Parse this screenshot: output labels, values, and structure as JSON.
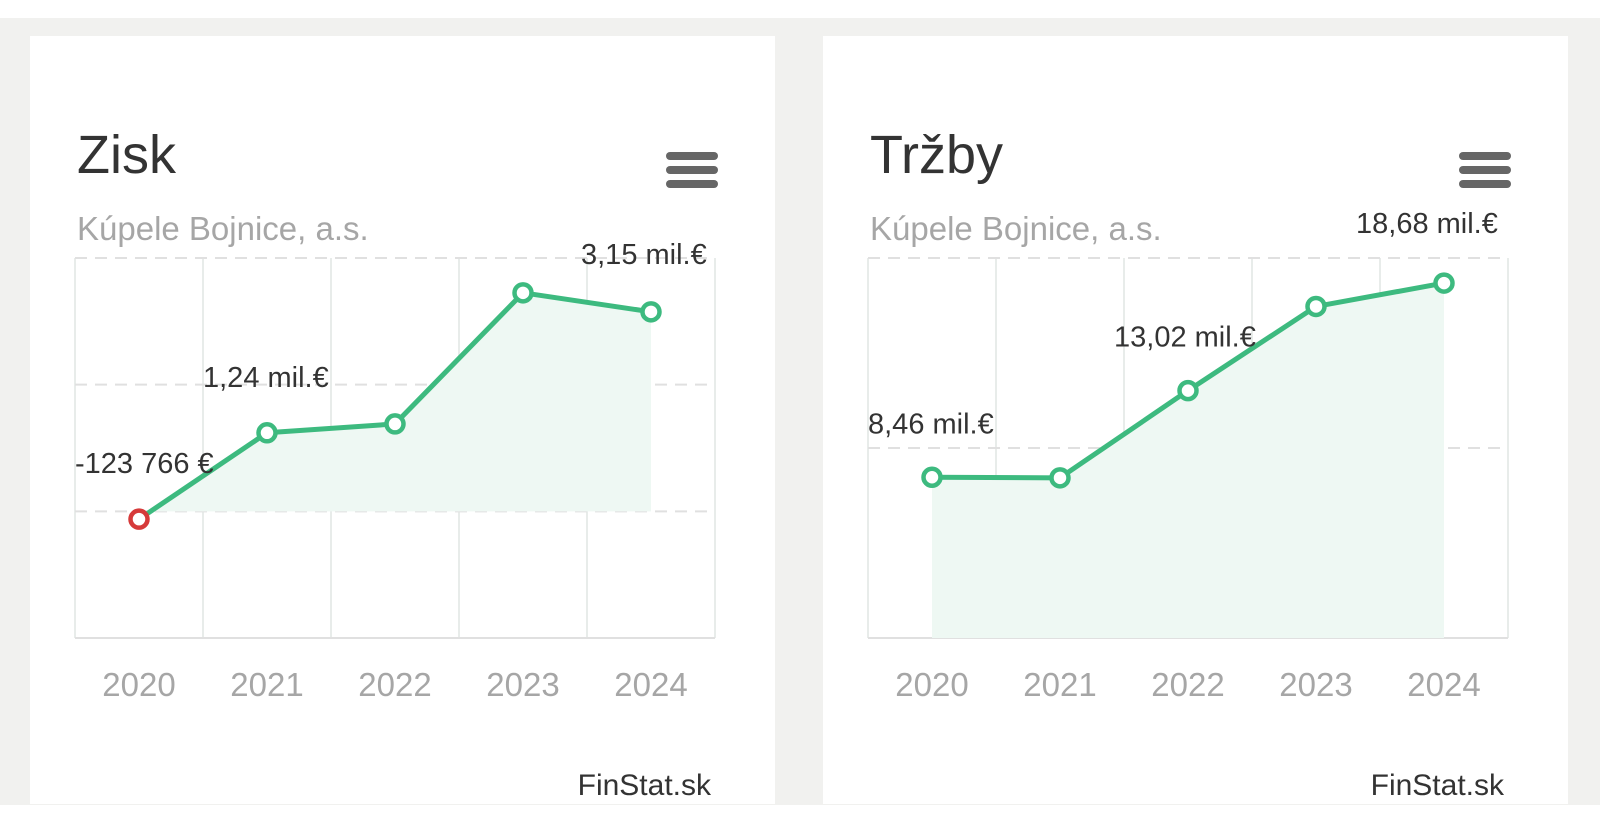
{
  "cards": [
    {
      "title": "Zisk",
      "subtitle": "Kúpele Bojnice, a.s.",
      "credit": "FinStat.sk",
      "icons": {
        "menu": "hamburger-menu-icon"
      },
      "chart_data": {
        "type": "area",
        "title": "Zisk",
        "subtitle": "Kúpele Bojnice, a.s.",
        "categories": [
          "2020",
          "2021",
          "2022",
          "2023",
          "2024"
        ],
        "series": [
          {
            "values": [
              -123766,
              1240000,
              1380000,
              3450000,
              3150000
            ]
          }
        ],
        "data_labels": [
          "-123 766 €",
          "1,24 mil.€",
          "",
          "",
          "3,15 mil.€"
        ],
        "ylim": [
          -2000000,
          4000000
        ],
        "y_gridlines": [
          -2000000,
          0,
          2000000,
          4000000
        ],
        "grid": true,
        "legend": "none",
        "colors": {
          "line": "#3dba7f",
          "area": "#eef8f3",
          "negative_point": "#d63a3a",
          "grid": "#e0e0e0"
        }
      }
    },
    {
      "title": "Tržby",
      "subtitle": "Kúpele Bojnice, a.s.",
      "credit": "FinStat.sk",
      "icons": {
        "menu": "hamburger-menu-icon"
      },
      "chart_data": {
        "type": "area",
        "title": "Tržby",
        "subtitle": "Kúpele Bojnice, a.s.",
        "categories": [
          "2020",
          "2021",
          "2022",
          "2023",
          "2024"
        ],
        "series": [
          {
            "values": [
              8460000,
              8430000,
              13020000,
              17450000,
              18680000
            ]
          }
        ],
        "data_labels": [
          "8,46 mil.€",
          "",
          "13,02 mil.€",
          "",
          "18,68 mil.€"
        ],
        "ylim": [
          0,
          20000000
        ],
        "y_gridlines": [
          0,
          10000000,
          20000000
        ],
        "grid": true,
        "legend": "none",
        "colors": {
          "line": "#3dba7f",
          "area": "#eef8f3",
          "negative_point": "#d63a3a",
          "grid": "#e0e0e0"
        }
      }
    }
  ]
}
